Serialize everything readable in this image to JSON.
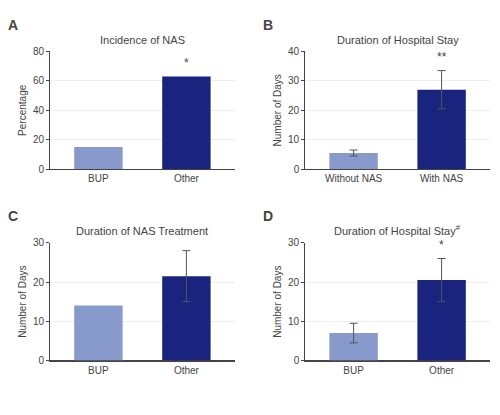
{
  "chart_data": [
    {
      "type": "bar",
      "label": "A",
      "title": "Incidence of NAS",
      "categories": [
        "BUP",
        "Other"
      ],
      "values": [
        15,
        63
      ],
      "colors": [
        "#8899cc",
        "#1a237e"
      ],
      "errors": [
        0,
        0
      ],
      "sig_labels": [
        null,
        "*"
      ],
      "ylabel": "Percentage",
      "ylim": [
        0,
        80
      ],
      "yticks": [
        0,
        20,
        40,
        60,
        80
      ]
    },
    {
      "type": "bar",
      "label": "B",
      "title": "Duration of Hospital Stay",
      "categories": [
        "Without NAS",
        "With NAS"
      ],
      "values": [
        5.5,
        27
      ],
      "colors": [
        "#8899cc",
        "#1a237e"
      ],
      "errors": [
        1.0,
        6.5
      ],
      "sig_labels": [
        null,
        "**"
      ],
      "ylabel": "Number of Days",
      "ylim": [
        0,
        40
      ],
      "yticks": [
        0,
        10,
        20,
        30,
        40
      ]
    },
    {
      "type": "bar",
      "label": "C",
      "title": "Duration of NAS Treatment",
      "categories": [
        "BUP",
        "Other"
      ],
      "values": [
        14,
        21.5
      ],
      "colors": [
        "#8899cc",
        "#1a237e"
      ],
      "errors": [
        0,
        6.5
      ],
      "ylabel": "Number of Days",
      "ylim": [
        0,
        30
      ],
      "yticks": [
        0,
        10,
        20,
        30
      ]
    },
    {
      "type": "bar",
      "label": "D",
      "title": "Duration of Hospital Stay",
      "title_suffix": "#",
      "categories": [
        "BUP",
        "Other"
      ],
      "values": [
        7,
        20.5
      ],
      "colors": [
        "#8899cc",
        "#1a237e"
      ],
      "errors": [
        2.5,
        5.5
      ],
      "sig_labels": [
        null,
        "*"
      ],
      "ylabel": "Number of Days",
      "ylim": [
        0,
        30
      ],
      "yticks": [
        0,
        10,
        20,
        30
      ]
    }
  ]
}
